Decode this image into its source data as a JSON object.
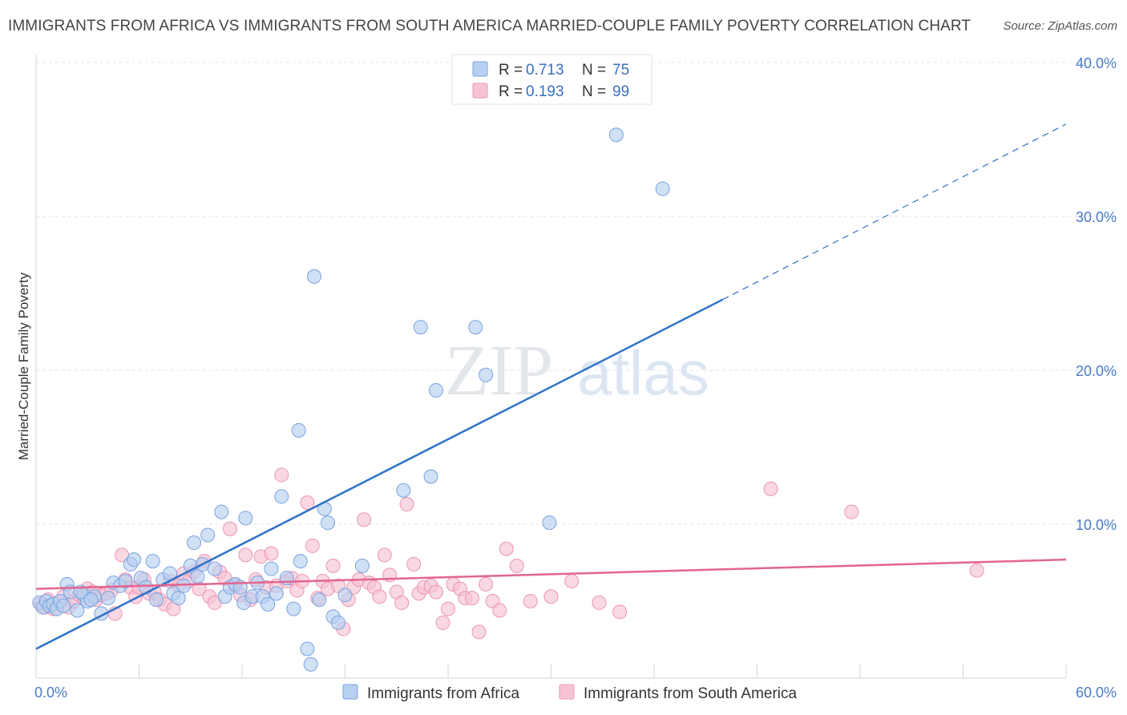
{
  "title": "IMMIGRANTS FROM AFRICA VS IMMIGRANTS FROM SOUTH AMERICA MARRIED-COUPLE FAMILY POVERTY CORRELATION CHART",
  "source": "Source: ZipAtlas.com",
  "watermark": {
    "zip": "ZIP",
    "atlas": "atlas"
  },
  "colors": {
    "africa_fill": "#b7cff0",
    "africa_stroke": "#7aa3e0",
    "africa_line": "#2f73c9",
    "sa_fill": "#f6c3d4",
    "sa_stroke": "#ec94b3",
    "sa_line": "#e3658f"
  },
  "legend": {
    "africa": {
      "r_label": "R =",
      "r_value": "0.713",
      "n_label": "N =",
      "n_value": "75"
    },
    "sa": {
      "r_label": "R =",
      "r_value": "0.193",
      "n_label": "N =",
      "n_value": "99"
    }
  },
  "chart_data": {
    "type": "scatter",
    "title": "IMMIGRANTS FROM AFRICA VS IMMIGRANTS FROM SOUTH AMERICA MARRIED-COUPLE FAMILY POVERTY CORRELATION CHART",
    "xlabel": "",
    "ylabel": "Married-Couple Family Poverty",
    "xlim": [
      0,
      60
    ],
    "ylim": [
      0,
      40
    ],
    "x_tick_labels": [
      "0.0%",
      "60.0%"
    ],
    "y_ticks": [
      10,
      20,
      30,
      40
    ],
    "y_tick_labels": [
      "10.0%",
      "20.0%",
      "30.0%",
      "40.0%"
    ],
    "grid": true,
    "legend_position": "top-center",
    "series": [
      {
        "name": "Immigrants from Africa",
        "r": 0.713,
        "n": 75,
        "trend": {
          "x0": 0,
          "y0": 1.9,
          "x1": 40,
          "y1": 24.6,
          "dashed_to_x": 60,
          "dashed_to_y": 36.0
        },
        "points": [
          [
            0.2,
            4.9
          ],
          [
            0.4,
            4.6
          ],
          [
            0.6,
            5.0
          ],
          [
            0.8,
            4.7
          ],
          [
            1.0,
            4.8
          ],
          [
            1.2,
            4.5
          ],
          [
            1.4,
            5.0
          ],
          [
            1.8,
            6.1
          ],
          [
            2.0,
            5.6
          ],
          [
            2.4,
            4.4
          ],
          [
            2.8,
            5.4
          ],
          [
            3.0,
            5.0
          ],
          [
            3.4,
            5.3
          ],
          [
            3.8,
            4.2
          ],
          [
            4.2,
            5.2
          ],
          [
            4.5,
            6.2
          ],
          [
            4.9,
            6.0
          ],
          [
            5.2,
            6.3
          ],
          [
            5.5,
            7.4
          ],
          [
            5.7,
            7.7
          ],
          [
            6.1,
            6.5
          ],
          [
            6.4,
            5.9
          ],
          [
            6.8,
            7.6
          ],
          [
            7.0,
            5.1
          ],
          [
            7.4,
            6.4
          ],
          [
            7.8,
            6.8
          ],
          [
            8.0,
            5.5
          ],
          [
            8.3,
            5.2
          ],
          [
            8.6,
            6.0
          ],
          [
            9.0,
            7.3
          ],
          [
            9.2,
            8.8
          ],
          [
            9.4,
            6.6
          ],
          [
            9.7,
            7.4
          ],
          [
            10.0,
            9.3
          ],
          [
            10.4,
            7.1
          ],
          [
            10.8,
            10.8
          ],
          [
            11.0,
            5.3
          ],
          [
            11.3,
            5.9
          ],
          [
            11.6,
            6.1
          ],
          [
            11.9,
            5.9
          ],
          [
            12.1,
            4.9
          ],
          [
            12.2,
            10.4
          ],
          [
            12.6,
            5.3
          ],
          [
            12.9,
            6.2
          ],
          [
            13.2,
            5.3
          ],
          [
            13.5,
            4.8
          ],
          [
            13.7,
            7.1
          ],
          [
            14.0,
            5.5
          ],
          [
            14.3,
            11.8
          ],
          [
            14.6,
            6.5
          ],
          [
            15.0,
            4.5
          ],
          [
            15.3,
            16.1
          ],
          [
            15.4,
            7.6
          ],
          [
            15.8,
            1.9
          ],
          [
            16.0,
            0.9
          ],
          [
            16.2,
            26.1
          ],
          [
            16.5,
            5.1
          ],
          [
            16.8,
            11.0
          ],
          [
            17.0,
            10.1
          ],
          [
            17.3,
            4.0
          ],
          [
            17.6,
            3.6
          ],
          [
            18.0,
            5.4
          ],
          [
            19.0,
            7.3
          ],
          [
            21.4,
            12.2
          ],
          [
            22.4,
            22.8
          ],
          [
            23.0,
            13.1
          ],
          [
            23.3,
            18.7
          ],
          [
            25.6,
            22.8
          ],
          [
            26.2,
            19.7
          ],
          [
            29.9,
            10.1
          ],
          [
            33.8,
            35.3
          ],
          [
            36.5,
            31.8
          ],
          [
            1.6,
            4.7
          ],
          [
            2.6,
            5.6
          ],
          [
            3.2,
            5.1
          ]
        ]
      },
      {
        "name": "Immigrants from South America",
        "r": 0.193,
        "n": 99,
        "trend": {
          "x0": 0,
          "y0": 5.8,
          "x1": 60,
          "y1": 7.7
        },
        "points": [
          [
            0.3,
            4.8
          ],
          [
            0.5,
            4.6
          ],
          [
            0.7,
            5.1
          ],
          [
            1.0,
            4.5
          ],
          [
            1.3,
            4.9
          ],
          [
            1.6,
            5.3
          ],
          [
            1.9,
            4.6
          ],
          [
            2.2,
            5.0
          ],
          [
            2.5,
            5.4
          ],
          [
            2.8,
            5.2
          ],
          [
            3.0,
            5.8
          ],
          [
            3.3,
            5.6
          ],
          [
            3.5,
            5.1
          ],
          [
            3.8,
            5.4
          ],
          [
            4.1,
            5.5
          ],
          [
            4.4,
            5.7
          ],
          [
            4.6,
            4.2
          ],
          [
            5.0,
            8.0
          ],
          [
            5.2,
            6.4
          ],
          [
            5.5,
            5.9
          ],
          [
            5.8,
            5.3
          ],
          [
            6.0,
            5.9
          ],
          [
            6.3,
            6.4
          ],
          [
            6.6,
            5.5
          ],
          [
            6.9,
            5.6
          ],
          [
            7.2,
            5.1
          ],
          [
            7.5,
            4.8
          ],
          [
            7.8,
            6.3
          ],
          [
            8.0,
            4.5
          ],
          [
            8.3,
            6.0
          ],
          [
            8.6,
            6.8
          ],
          [
            8.9,
            6.3
          ],
          [
            9.2,
            6.9
          ],
          [
            9.5,
            5.8
          ],
          [
            9.8,
            7.6
          ],
          [
            10.1,
            5.3
          ],
          [
            10.4,
            4.9
          ],
          [
            10.7,
            6.9
          ],
          [
            11.0,
            6.5
          ],
          [
            11.3,
            9.7
          ],
          [
            11.6,
            6.0
          ],
          [
            11.9,
            5.4
          ],
          [
            12.2,
            8.0
          ],
          [
            12.5,
            5.1
          ],
          [
            12.8,
            6.4
          ],
          [
            13.1,
            7.9
          ],
          [
            13.4,
            5.9
          ],
          [
            13.7,
            8.1
          ],
          [
            14.0,
            6.0
          ],
          [
            14.3,
            13.2
          ],
          [
            14.6,
            6.3
          ],
          [
            14.9,
            6.5
          ],
          [
            15.2,
            5.7
          ],
          [
            15.5,
            6.3
          ],
          [
            15.8,
            11.4
          ],
          [
            16.1,
            8.6
          ],
          [
            16.4,
            5.2
          ],
          [
            16.7,
            6.3
          ],
          [
            17.0,
            5.8
          ],
          [
            17.3,
            7.3
          ],
          [
            17.6,
            6.0
          ],
          [
            17.9,
            3.2
          ],
          [
            18.2,
            5.1
          ],
          [
            18.5,
            5.9
          ],
          [
            18.8,
            6.4
          ],
          [
            19.1,
            10.3
          ],
          [
            19.4,
            6.2
          ],
          [
            19.7,
            5.9
          ],
          [
            20.0,
            5.3
          ],
          [
            20.3,
            8.0
          ],
          [
            20.6,
            6.7
          ],
          [
            21.0,
            5.6
          ],
          [
            21.3,
            4.9
          ],
          [
            21.6,
            11.3
          ],
          [
            22.0,
            7.4
          ],
          [
            22.3,
            5.5
          ],
          [
            22.6,
            5.9
          ],
          [
            23.0,
            6.0
          ],
          [
            23.3,
            5.6
          ],
          [
            23.7,
            3.6
          ],
          [
            24.0,
            4.5
          ],
          [
            24.3,
            6.1
          ],
          [
            24.7,
            5.8
          ],
          [
            25.0,
            5.2
          ],
          [
            25.4,
            5.2
          ],
          [
            25.8,
            3.0
          ],
          [
            26.2,
            6.1
          ],
          [
            26.6,
            5.0
          ],
          [
            27.0,
            4.4
          ],
          [
            27.4,
            8.4
          ],
          [
            28.0,
            7.3
          ],
          [
            28.8,
            5.0
          ],
          [
            30.0,
            5.3
          ],
          [
            31.2,
            6.3
          ],
          [
            32.8,
            4.9
          ],
          [
            34.0,
            4.3
          ],
          [
            42.8,
            12.3
          ],
          [
            47.5,
            10.8
          ],
          [
            54.8,
            7.0
          ]
        ]
      }
    ]
  },
  "bottom_legend": {
    "africa": "Immigrants from Africa",
    "sa": "Immigrants from South America"
  }
}
